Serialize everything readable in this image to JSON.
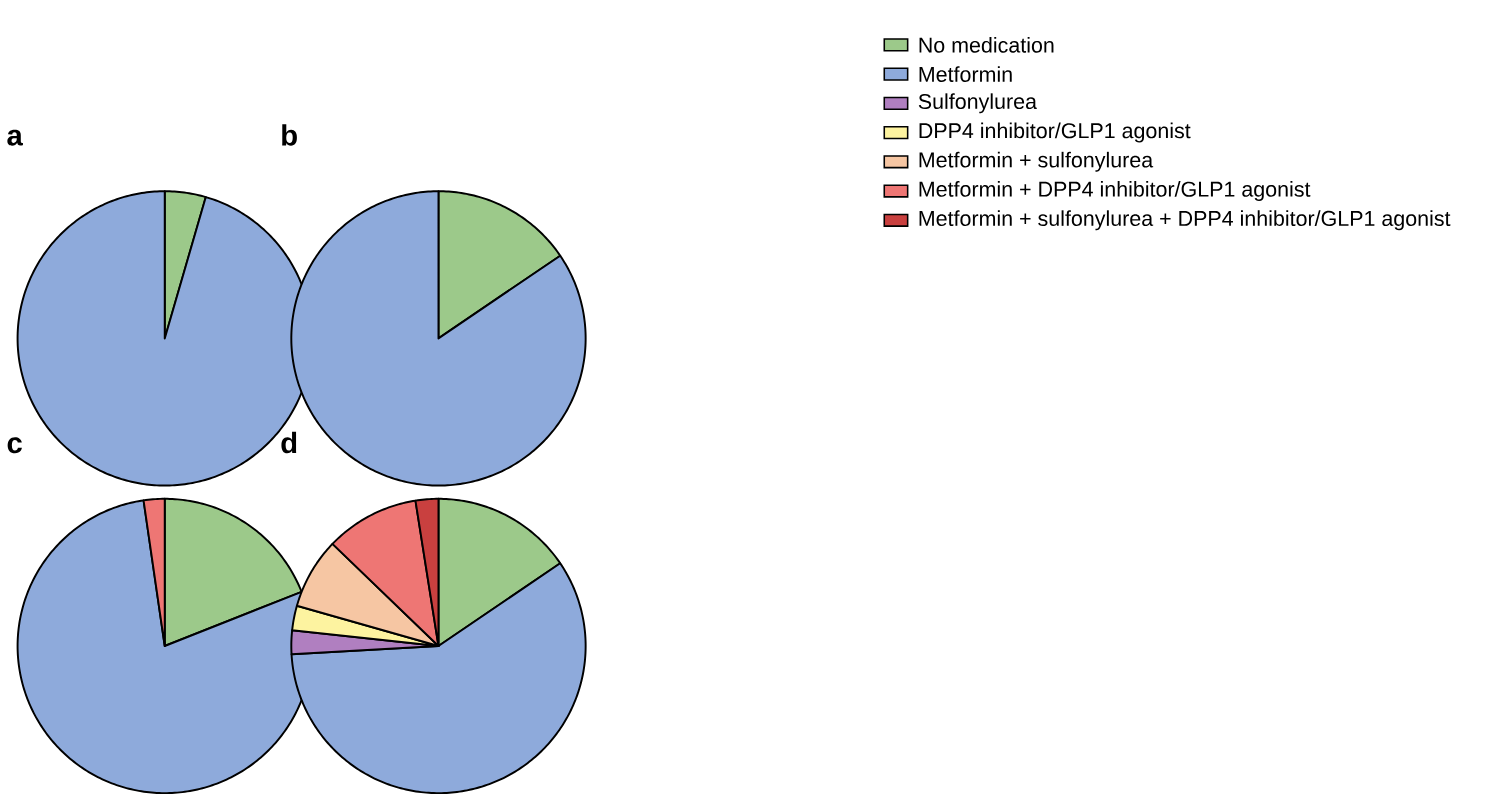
{
  "chart_data": [
    {
      "type": "pie",
      "title": "a",
      "categories": [
        null,
        null,
        null,
        null,
        null,
        null,
        null
      ],
      "values": [
        4.5,
        95.5,
        0,
        0,
        0,
        0,
        0
      ],
      "colors": [
        "#9cc98a",
        "#8eaadb",
        "#b07fc0",
        "#fdf3a0",
        "#f6c6a3",
        "#ee7674",
        "#c9403f"
      ]
    },
    {
      "type": "pie",
      "title": "b",
      "categories": [
        "No medication",
        "Metformin",
        "Sulfonylurea",
        "DPP4 inhibitor/GLP1 agonist",
        "Metformin + sulfonylurea",
        "Metformin + DPP4 inhibitor/GLP1 agonist",
        "Metformin + sulfonylurea + DPP4 inhibitor/GLP1 agonist"
      ],
      "values": [
        15.5,
        84.5,
        0,
        0,
        0,
        0,
        0
      ],
      "colors": [
        "#9cc98a",
        "#8eaadb",
        "#b07fc0",
        "#fdf3a0",
        "#f6c6a3",
        "#ee7674",
        "#c9403f"
      ],
      "legend": "right"
    },
    {
      "type": "pie",
      "title": "c",
      "categories": [
        null,
        null,
        null,
        null,
        null,
        null,
        null
      ],
      "values": [
        19,
        78.7,
        0,
        0,
        0,
        2.3,
        0
      ],
      "colors": [
        "#9cc98a",
        "#8eaadb",
        "#b07fc0",
        "#fdf3a0",
        "#f6c6a3",
        "#ee7674",
        "#c9403f"
      ]
    },
    {
      "type": "pie",
      "title": "d",
      "categories": [
        null,
        null,
        null,
        null,
        null,
        null,
        null
      ],
      "values": [
        15.5,
        58.6,
        2.6,
        2.7,
        7.8,
        10.3,
        2.5
      ],
      "colors": [
        "#9cc98a",
        "#8eaadb",
        "#b07fc0",
        "#fdf3a0",
        "#f6c6a3",
        "#ee7674",
        "#c9403f"
      ]
    }
  ]
}
